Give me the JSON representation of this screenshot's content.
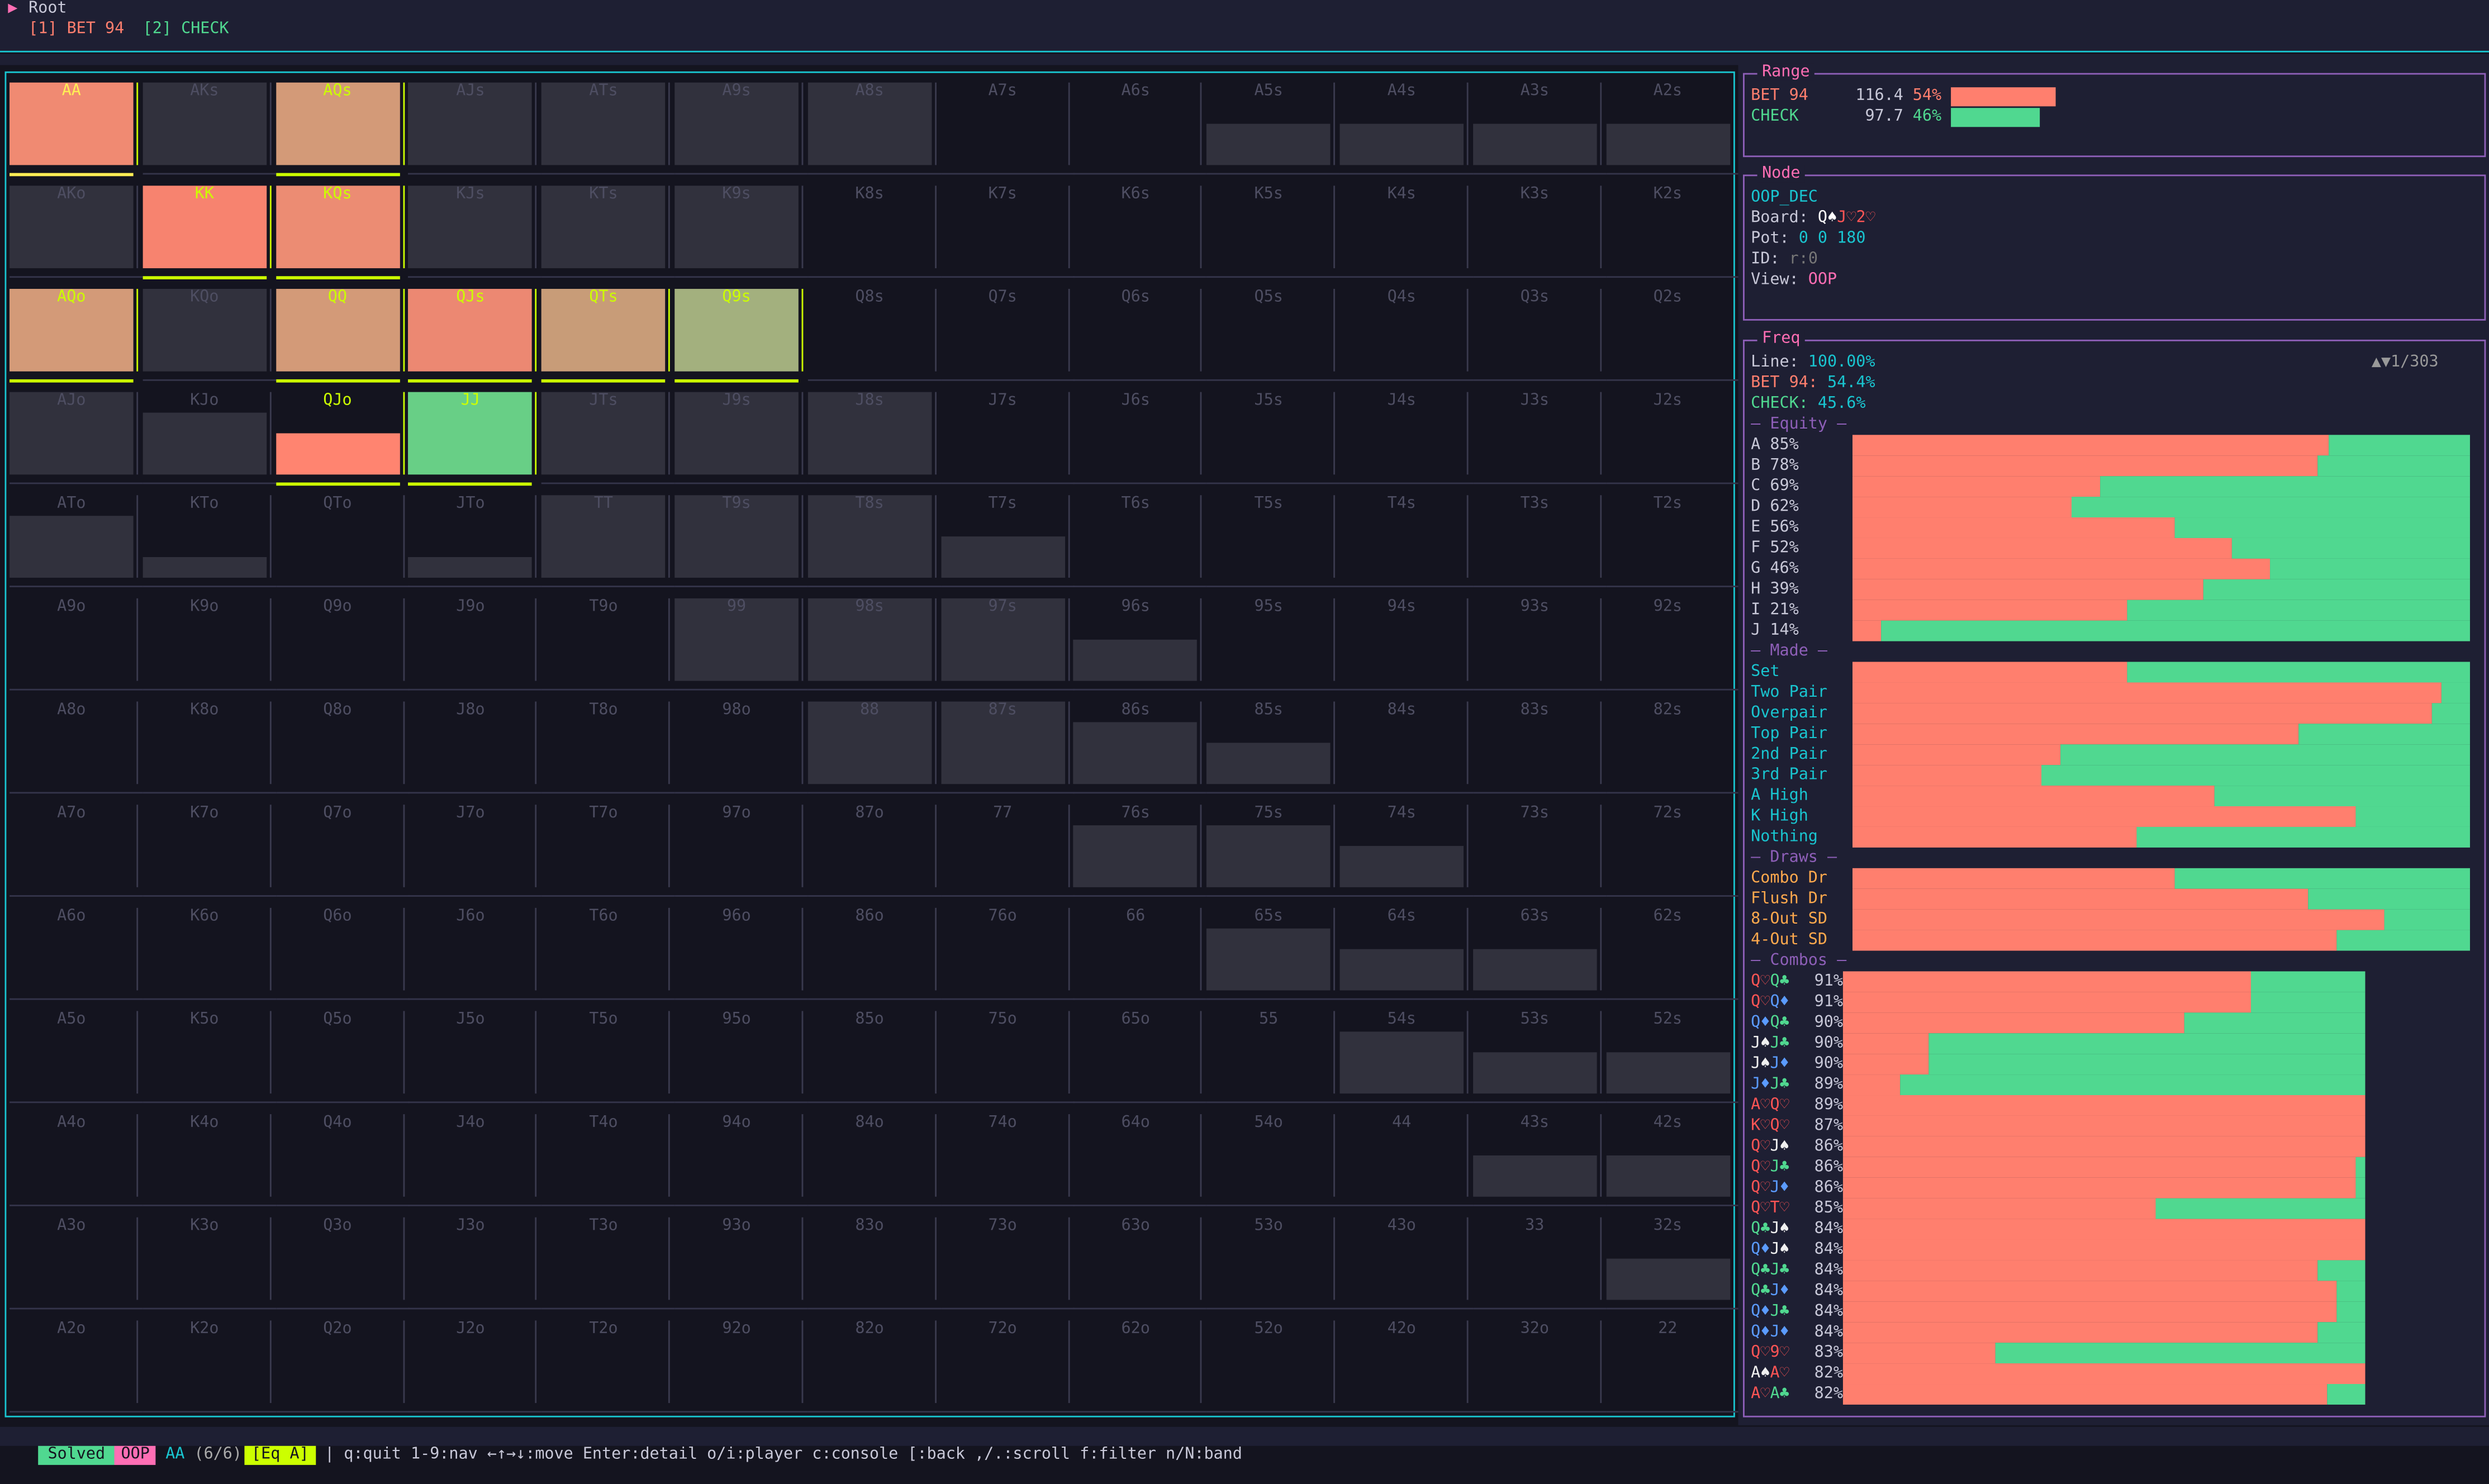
{
  "header": {
    "root_label": "Root",
    "actions": [
      {
        "key": "[1]",
        "label": "BET 94",
        "color": "#ff7f6e"
      },
      {
        "key": "[2]",
        "label": "CHECK",
        "color": "#50d890"
      }
    ]
  },
  "colors": {
    "bet": "#ff7f6e",
    "check": "#50d890",
    "gray": "#31313d",
    "accent": "#19c5d0",
    "title": "#ff6eb4",
    "border": "#8e5fb8",
    "highlight": "#ccff00",
    "selected": "#ffee55"
  },
  "grid": [
    [
      {
        "h": "AA",
        "w": 1,
        "c": "#f08a72",
        "hl": true,
        "sel": true
      },
      {
        "h": "AKs",
        "w": 1,
        "c": "gray"
      },
      {
        "h": "AQs",
        "w": 1,
        "c": "#d39a78",
        "hl": true
      },
      {
        "h": "AJs",
        "w": 1,
        "c": "gray"
      },
      {
        "h": "ATs",
        "w": 1,
        "c": "gray"
      },
      {
        "h": "A9s",
        "w": 1,
        "c": "gray"
      },
      {
        "h": "A8s",
        "w": 1,
        "c": "gray"
      },
      {
        "h": "A7s",
        "w": 0
      },
      {
        "h": "A6s",
        "w": 0
      },
      {
        "h": "A5s",
        "w": 0.5,
        "c": "gray"
      },
      {
        "h": "A4s",
        "w": 0.5,
        "c": "gray"
      },
      {
        "h": "A3s",
        "w": 0.5,
        "c": "gray"
      },
      {
        "h": "A2s",
        "w": 0.5,
        "c": "gray"
      }
    ],
    [
      {
        "h": "AKo",
        "w": 1,
        "c": "gray"
      },
      {
        "h": "KK",
        "w": 1,
        "c": "#f7836f",
        "hl": true
      },
      {
        "h": "KQs",
        "w": 1,
        "c": "#ec8c73",
        "hl": true
      },
      {
        "h": "KJs",
        "w": 1,
        "c": "gray"
      },
      {
        "h": "KTs",
        "w": 1,
        "c": "gray"
      },
      {
        "h": "K9s",
        "w": 1,
        "c": "gray"
      },
      {
        "h": "K8s",
        "w": 0
      },
      {
        "h": "K7s",
        "w": 0
      },
      {
        "h": "K6s",
        "w": 0
      },
      {
        "h": "K5s",
        "w": 0
      },
      {
        "h": "K4s",
        "w": 0
      },
      {
        "h": "K3s",
        "w": 0
      },
      {
        "h": "K2s",
        "w": 0
      }
    ],
    [
      {
        "h": "AQo",
        "w": 1,
        "c": "#d39a78",
        "hl": true
      },
      {
        "h": "KQo",
        "w": 1,
        "c": "gray"
      },
      {
        "h": "QQ",
        "w": 1,
        "c": "#d39a78",
        "hl": true
      },
      {
        "h": "QJs",
        "w": 1,
        "c": "#ec8872",
        "hl": true
      },
      {
        "h": "QTs",
        "w": 1,
        "c": "#c89c78",
        "hl": true
      },
      {
        "h": "Q9s",
        "w": 1,
        "c": "#a3b07e",
        "hl": true
      },
      {
        "h": "Q8s",
        "w": 0
      },
      {
        "h": "Q7s",
        "w": 0
      },
      {
        "h": "Q6s",
        "w": 0
      },
      {
        "h": "Q5s",
        "w": 0
      },
      {
        "h": "Q4s",
        "w": 0
      },
      {
        "h": "Q3s",
        "w": 0
      },
      {
        "h": "Q2s",
        "w": 0
      }
    ],
    [
      {
        "h": "AJo",
        "w": 1,
        "c": "gray"
      },
      {
        "h": "KJo",
        "w": 0.75,
        "c": "gray"
      },
      {
        "h": "QJo",
        "w": 0.5,
        "c": "#ff8470",
        "hl": true
      },
      {
        "h": "JJ",
        "w": 1,
        "c": "#68cf86",
        "hl": true
      },
      {
        "h": "JTs",
        "w": 1,
        "c": "gray"
      },
      {
        "h": "J9s",
        "w": 1,
        "c": "gray"
      },
      {
        "h": "J8s",
        "w": 1,
        "c": "gray"
      },
      {
        "h": "J7s",
        "w": 0
      },
      {
        "h": "J6s",
        "w": 0
      },
      {
        "h": "J5s",
        "w": 0
      },
      {
        "h": "J4s",
        "w": 0
      },
      {
        "h": "J3s",
        "w": 0
      },
      {
        "h": "J2s",
        "w": 0
      }
    ],
    [
      {
        "h": "ATo",
        "w": 0.75,
        "c": "gray"
      },
      {
        "h": "KTo",
        "w": 0.25,
        "c": "gray"
      },
      {
        "h": "QTo",
        "w": 0
      },
      {
        "h": "JTo",
        "w": 0.25,
        "c": "gray"
      },
      {
        "h": "TT",
        "w": 1,
        "c": "gray"
      },
      {
        "h": "T9s",
        "w": 1,
        "c": "gray"
      },
      {
        "h": "T8s",
        "w": 1,
        "c": "gray"
      },
      {
        "h": "T7s",
        "w": 0.5,
        "c": "gray"
      },
      {
        "h": "T6s",
        "w": 0
      },
      {
        "h": "T5s",
        "w": 0
      },
      {
        "h": "T4s",
        "w": 0
      },
      {
        "h": "T3s",
        "w": 0
      },
      {
        "h": "T2s",
        "w": 0
      }
    ],
    [
      {
        "h": "A9o",
        "w": 0
      },
      {
        "h": "K9o",
        "w": 0
      },
      {
        "h": "Q9o",
        "w": 0
      },
      {
        "h": "J9o",
        "w": 0
      },
      {
        "h": "T9o",
        "w": 0
      },
      {
        "h": "99",
        "w": 1,
        "c": "gray"
      },
      {
        "h": "98s",
        "w": 1,
        "c": "gray"
      },
      {
        "h": "97s",
        "w": 1,
        "c": "gray"
      },
      {
        "h": "96s",
        "w": 0.5,
        "c": "gray"
      },
      {
        "h": "95s",
        "w": 0
      },
      {
        "h": "94s",
        "w": 0
      },
      {
        "h": "93s",
        "w": 0
      },
      {
        "h": "92s",
        "w": 0
      }
    ],
    [
      {
        "h": "A8o",
        "w": 0
      },
      {
        "h": "K8o",
        "w": 0
      },
      {
        "h": "Q8o",
        "w": 0
      },
      {
        "h": "J8o",
        "w": 0
      },
      {
        "h": "T8o",
        "w": 0
      },
      {
        "h": "98o",
        "w": 0
      },
      {
        "h": "88",
        "w": 1,
        "c": "gray"
      },
      {
        "h": "87s",
        "w": 1,
        "c": "gray"
      },
      {
        "h": "86s",
        "w": 0.75,
        "c": "gray"
      },
      {
        "h": "85s",
        "w": 0.5,
        "c": "gray"
      },
      {
        "h": "84s",
        "w": 0
      },
      {
        "h": "83s",
        "w": 0
      },
      {
        "h": "82s",
        "w": 0
      }
    ],
    [
      {
        "h": "A7o",
        "w": 0
      },
      {
        "h": "K7o",
        "w": 0
      },
      {
        "h": "Q7o",
        "w": 0
      },
      {
        "h": "J7o",
        "w": 0
      },
      {
        "h": "T7o",
        "w": 0
      },
      {
        "h": "97o",
        "w": 0
      },
      {
        "h": "87o",
        "w": 0
      },
      {
        "h": "77",
        "w": 0
      },
      {
        "h": "76s",
        "w": 0.75,
        "c": "gray"
      },
      {
        "h": "75s",
        "w": 0.75,
        "c": "gray"
      },
      {
        "h": "74s",
        "w": 0.5,
        "c": "gray"
      },
      {
        "h": "73s",
        "w": 0
      },
      {
        "h": "72s",
        "w": 0
      }
    ],
    [
      {
        "h": "A6o",
        "w": 0
      },
      {
        "h": "K6o",
        "w": 0
      },
      {
        "h": "Q6o",
        "w": 0
      },
      {
        "h": "J6o",
        "w": 0
      },
      {
        "h": "T6o",
        "w": 0
      },
      {
        "h": "96o",
        "w": 0
      },
      {
        "h": "86o",
        "w": 0
      },
      {
        "h": "76o",
        "w": 0
      },
      {
        "h": "66",
        "w": 0
      },
      {
        "h": "65s",
        "w": 0.75,
        "c": "gray"
      },
      {
        "h": "64s",
        "w": 0.5,
        "c": "gray"
      },
      {
        "h": "63s",
        "w": 0.5,
        "c": "gray"
      },
      {
        "h": "62s",
        "w": 0
      }
    ],
    [
      {
        "h": "A5o",
        "w": 0
      },
      {
        "h": "K5o",
        "w": 0
      },
      {
        "h": "Q5o",
        "w": 0
      },
      {
        "h": "J5o",
        "w": 0
      },
      {
        "h": "T5o",
        "w": 0
      },
      {
        "h": "95o",
        "w": 0
      },
      {
        "h": "85o",
        "w": 0
      },
      {
        "h": "75o",
        "w": 0
      },
      {
        "h": "65o",
        "w": 0
      },
      {
        "h": "55",
        "w": 0
      },
      {
        "h": "54s",
        "w": 0.75,
        "c": "gray"
      },
      {
        "h": "53s",
        "w": 0.5,
        "c": "gray"
      },
      {
        "h": "52s",
        "w": 0.5,
        "c": "gray"
      }
    ],
    [
      {
        "h": "A4o",
        "w": 0
      },
      {
        "h": "K4o",
        "w": 0
      },
      {
        "h": "Q4o",
        "w": 0
      },
      {
        "h": "J4o",
        "w": 0
      },
      {
        "h": "T4o",
        "w": 0
      },
      {
        "h": "94o",
        "w": 0
      },
      {
        "h": "84o",
        "w": 0
      },
      {
        "h": "74o",
        "w": 0
      },
      {
        "h": "64o",
        "w": 0
      },
      {
        "h": "54o",
        "w": 0
      },
      {
        "h": "44",
        "w": 0
      },
      {
        "h": "43s",
        "w": 0.5,
        "c": "gray"
      },
      {
        "h": "42s",
        "w": 0.5,
        "c": "gray"
      }
    ],
    [
      {
        "h": "A3o",
        "w": 0
      },
      {
        "h": "K3o",
        "w": 0
      },
      {
        "h": "Q3o",
        "w": 0
      },
      {
        "h": "J3o",
        "w": 0
      },
      {
        "h": "T3o",
        "w": 0
      },
      {
        "h": "93o",
        "w": 0
      },
      {
        "h": "83o",
        "w": 0
      },
      {
        "h": "73o",
        "w": 0
      },
      {
        "h": "63o",
        "w": 0
      },
      {
        "h": "53o",
        "w": 0
      },
      {
        "h": "43o",
        "w": 0
      },
      {
        "h": "33",
        "w": 0
      },
      {
        "h": "32s",
        "w": 0.5,
        "c": "gray"
      }
    ],
    [
      {
        "h": "A2o",
        "w": 0
      },
      {
        "h": "K2o",
        "w": 0
      },
      {
        "h": "Q2o",
        "w": 0
      },
      {
        "h": "J2o",
        "w": 0
      },
      {
        "h": "T2o",
        "w": 0
      },
      {
        "h": "92o",
        "w": 0
      },
      {
        "h": "82o",
        "w": 0
      },
      {
        "h": "72o",
        "w": 0
      },
      {
        "h": "62o",
        "w": 0
      },
      {
        "h": "52o",
        "w": 0
      },
      {
        "h": "42o",
        "w": 0
      },
      {
        "h": "32o",
        "w": 0
      },
      {
        "h": "22",
        "w": 0
      }
    ]
  ],
  "range": {
    "title": "Range",
    "rows": [
      {
        "label": "BET 94",
        "value": "116.4",
        "pct": "54%",
        "frac": 0.54,
        "color": "#ff7f6e"
      },
      {
        "label": "CHECK",
        "value": "97.7",
        "pct": "46%",
        "frac": 0.46,
        "color": "#50d890"
      }
    ]
  },
  "node": {
    "title": "Node",
    "name": "OOP_DEC",
    "board_label": "Board: ",
    "board": [
      {
        "r": "Q",
        "s": "♠"
      },
      {
        "r": "J",
        "s": "♡"
      },
      {
        "r": "2",
        "s": "♡"
      }
    ],
    "pot_label": "Pot: ",
    "pot": "0 0 180",
    "id_label": "ID: ",
    "id": "r:0",
    "view_label": "View: ",
    "view": "OOP"
  },
  "freq": {
    "title": "Freq",
    "line_label": "Line: ",
    "line_value": "100.00%",
    "scroll": "▲▼1/303",
    "bet_label": "BET 94: ",
    "bet_value": "54.4%",
    "check_label": "CHECK: ",
    "check_value": "45.6%",
    "equity_heading": "— Equity —",
    "equity": [
      {
        "label": "A 85%",
        "bet": 0.77
      },
      {
        "label": "B 78%",
        "bet": 0.754
      },
      {
        "label": "C 69%",
        "bet": 0.4
      },
      {
        "label": "D 62%",
        "bet": 0.354
      },
      {
        "label": "E 56%",
        "bet": 0.523
      },
      {
        "label": "F 52%",
        "bet": 0.614
      },
      {
        "label": "G 46%",
        "bet": 0.676
      },
      {
        "label": "H 39%",
        "bet": 0.569
      },
      {
        "label": "I 21%",
        "bet": 0.445
      },
      {
        "label": "J 14%",
        "bet": 0.047
      }
    ],
    "made_heading": "— Made —",
    "made": [
      {
        "label": "Set",
        "bet": 0.445
      },
      {
        "label": "Two Pair",
        "bet": 0.954
      },
      {
        "label": "Overpair",
        "bet": 0.939
      },
      {
        "label": "Top Pair",
        "bet": 0.723
      },
      {
        "label": "2nd Pair",
        "bet": 0.338
      },
      {
        "label": "3rd Pair",
        "bet": 0.307
      },
      {
        "label": "A High",
        "bet": 0.585
      },
      {
        "label": "K High",
        "bet": 0.815
      },
      {
        "label": "Nothing",
        "bet": 0.461
      }
    ],
    "draws_heading": "— Draws —",
    "draws": [
      {
        "label": "Combo Dr",
        "bet": 0.523
      },
      {
        "label": "Flush Dr",
        "bet": 0.739
      },
      {
        "label": "8-Out SD",
        "bet": 0.861
      },
      {
        "label": "4-Out SD",
        "bet": 0.785
      }
    ],
    "combos_heading": "— Combos —",
    "combos": [
      {
        "cards": [
          [
            "Q",
            "♡"
          ],
          [
            "Q",
            "♣"
          ]
        ],
        "eq": "91%",
        "bet": 0.781
      },
      {
        "cards": [
          [
            "Q",
            "♡"
          ],
          [
            "Q",
            "♦"
          ]
        ],
        "eq": "91%",
        "bet": 0.781
      },
      {
        "cards": [
          [
            "Q",
            "♦"
          ],
          [
            "Q",
            "♣"
          ]
        ],
        "eq": "90%",
        "bet": 0.654
      },
      {
        "cards": [
          [
            "J",
            "♠"
          ],
          [
            "J",
            "♣"
          ]
        ],
        "eq": "90%",
        "bet": 0.163
      },
      {
        "cards": [
          [
            "J",
            "♠"
          ],
          [
            "J",
            "♦"
          ]
        ],
        "eq": "90%",
        "bet": 0.163
      },
      {
        "cards": [
          [
            "J",
            "♦"
          ],
          [
            "J",
            "♣"
          ]
        ],
        "eq": "89%",
        "bet": 0.108
      },
      {
        "cards": [
          [
            "A",
            "♡"
          ],
          [
            "Q",
            "♡"
          ]
        ],
        "eq": "89%",
        "bet": 1
      },
      {
        "cards": [
          [
            "K",
            "♡"
          ],
          [
            "Q",
            "♡"
          ]
        ],
        "eq": "87%",
        "bet": 1
      },
      {
        "cards": [
          [
            "Q",
            "♡"
          ],
          [
            "J",
            "♠"
          ]
        ],
        "eq": "86%",
        "bet": 1
      },
      {
        "cards": [
          [
            "Q",
            "♡"
          ],
          [
            "J",
            "♣"
          ]
        ],
        "eq": "86%",
        "bet": 0.982
      },
      {
        "cards": [
          [
            "Q",
            "♡"
          ],
          [
            "J",
            "♦"
          ]
        ],
        "eq": "86%",
        "bet": 0.982
      },
      {
        "cards": [
          [
            "Q",
            "♡"
          ],
          [
            "T",
            "♡"
          ]
        ],
        "eq": "85%",
        "bet": 0.6
      },
      {
        "cards": [
          [
            "Q",
            "♣"
          ],
          [
            "J",
            "♠"
          ]
        ],
        "eq": "84%",
        "bet": 1
      },
      {
        "cards": [
          [
            "Q",
            "♦"
          ],
          [
            "J",
            "♠"
          ]
        ],
        "eq": "84%",
        "bet": 1
      },
      {
        "cards": [
          [
            "Q",
            "♣"
          ],
          [
            "J",
            "♣"
          ]
        ],
        "eq": "84%",
        "bet": 0.91
      },
      {
        "cards": [
          [
            "Q",
            "♣"
          ],
          [
            "J",
            "♦"
          ]
        ],
        "eq": "84%",
        "bet": 0.946
      },
      {
        "cards": [
          [
            "Q",
            "♦"
          ],
          [
            "J",
            "♣"
          ]
        ],
        "eq": "84%",
        "bet": 0.946
      },
      {
        "cards": [
          [
            "Q",
            "♦"
          ],
          [
            "J",
            "♦"
          ]
        ],
        "eq": "84%",
        "bet": 0.91
      },
      {
        "cards": [
          [
            "Q",
            "♡"
          ],
          [
            "9",
            "♡"
          ]
        ],
        "eq": "83%",
        "bet": 0.291
      },
      {
        "cards": [
          [
            "A",
            "♠"
          ],
          [
            "A",
            "♡"
          ]
        ],
        "eq": "82%",
        "bet": 1
      },
      {
        "cards": [
          [
            "A",
            "♡"
          ],
          [
            "A",
            "♣"
          ]
        ],
        "eq": "82%",
        "bet": 0.928
      }
    ]
  },
  "status": {
    "solved": "Solved",
    "player": "OOP",
    "hand": "AA",
    "count": "(6/6)",
    "mode": "[Eq A]",
    "help": "| q:quit 1-9:nav ←↑→↓:move Enter:detail o/i:player c:console [:back ,/.:scroll f:filter n/N:band"
  }
}
